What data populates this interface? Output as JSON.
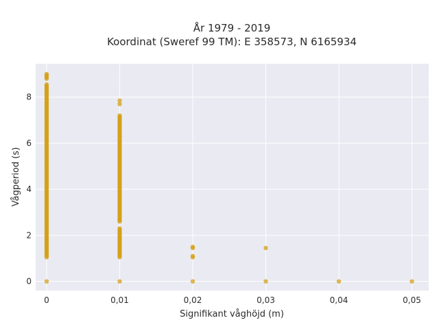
{
  "chart_data": {
    "type": "scatter",
    "title": "År 1979 - 2019",
    "subtitle": "Koordinat (Sweref 99 TM): E 358573, N 6165934",
    "xlabel": "Signifikant våghöjd (m)",
    "ylabel": "Vågperiod (s)",
    "xlim": [
      -0.0015,
      0.0523
    ],
    "ylim": [
      -0.4,
      9.45
    ],
    "x_ticks": [
      0,
      0.01,
      0.02,
      0.03,
      0.04,
      0.05
    ],
    "x_tick_labels": [
      "0",
      "0,01",
      "0,02",
      "0,03",
      "0,04",
      "0,05"
    ],
    "y_ticks": [
      0,
      2,
      4,
      6,
      8
    ],
    "y_tick_labels": [
      "0",
      "2",
      "4",
      "6",
      "8"
    ],
    "grid": true,
    "legend": "none",
    "colors": {
      "point": "#d4a017",
      "plot_bg": "#eaeaf2",
      "grid": "#ffffff"
    },
    "series": [
      {
        "x_groups": [
          {
            "x": 0,
            "y_ranges": [
              [
                1.05,
                8.55
              ],
              [
                8.8,
                9.0
              ]
            ],
            "y_points": [
              0
            ]
          },
          {
            "x": 0.01,
            "y_ranges": [
              [
                1.05,
                2.3
              ],
              [
                2.6,
                7.2
              ]
            ],
            "y_points": [
              0,
              7.7,
              7.85
            ]
          },
          {
            "x": 0.02,
            "y_points": [
              0,
              1.05,
              1.1,
              1.45,
              1.5
            ]
          },
          {
            "x": 0.03,
            "y_points": [
              0,
              1.45
            ]
          },
          {
            "x": 0.04,
            "y_points": [
              0
            ]
          },
          {
            "x": 0.05,
            "y_points": [
              0
            ]
          }
        ]
      }
    ]
  }
}
